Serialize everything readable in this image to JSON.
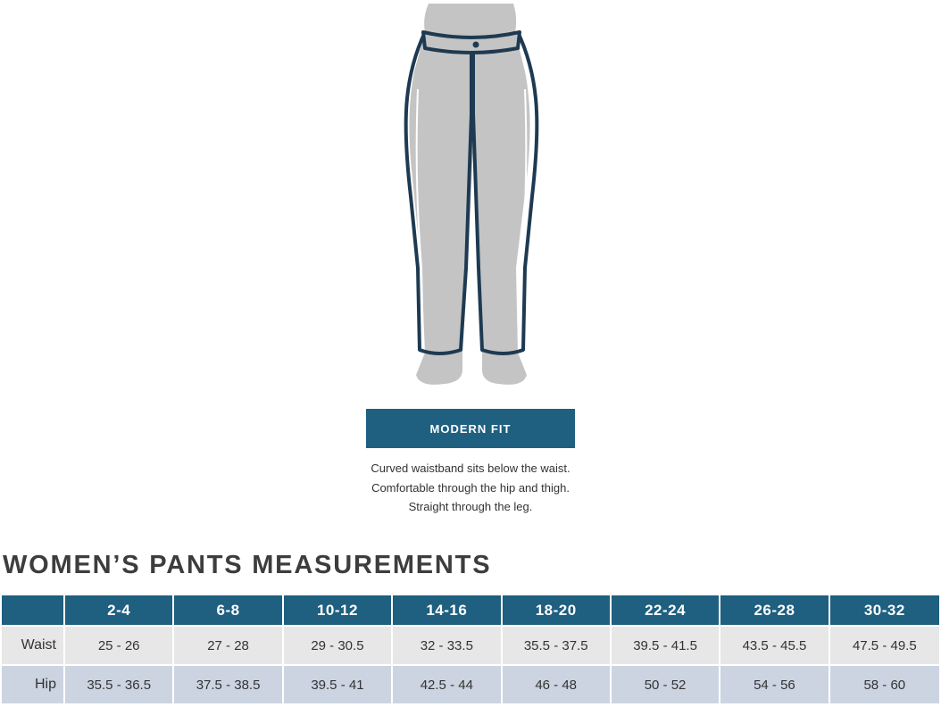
{
  "fit": {
    "name": "MODERN FIT",
    "description": [
      "Curved waistband sits below the waist.",
      "Comfortable through the hip and thigh.",
      "Straight through the leg."
    ]
  },
  "colors": {
    "accent": "#1f5f7f",
    "row_waist": "#e7e7e7",
    "row_hip": "#ccd4e1",
    "figure_fill": "#c4c4c4",
    "pants_outline": "#1e3a52"
  },
  "illustration": {
    "icon": "pants-figure-icon"
  },
  "measurements": {
    "title": "WOMEN’S PANTS MEASUREMENTS",
    "sizes": [
      "2-4",
      "6-8",
      "10-12",
      "14-16",
      "18-20",
      "22-24",
      "26-28",
      "30-32"
    ],
    "rows": [
      {
        "label": "Waist",
        "values": [
          "25 - 26",
          "27 - 28",
          "29 - 30.5",
          "32 - 33.5",
          "35.5 - 37.5",
          "39.5 - 41.5",
          "43.5 - 45.5",
          "47.5 - 49.5"
        ]
      },
      {
        "label": "Hip",
        "values": [
          "35.5 - 36.5",
          "37.5 - 38.5",
          "39.5 - 41",
          "42.5 - 44",
          "46 - 48",
          "50 - 52",
          "54 - 56",
          "58 - 60"
        ]
      }
    ]
  }
}
